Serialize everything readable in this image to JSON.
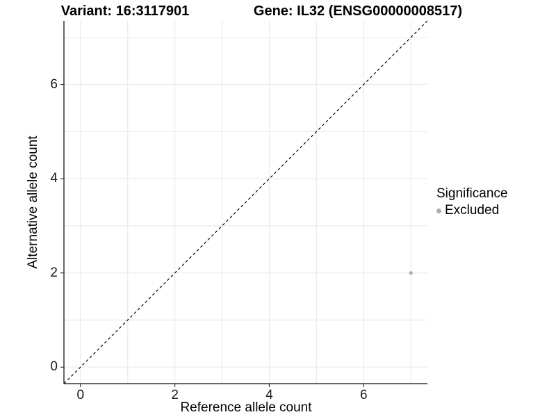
{
  "chart_data": {
    "type": "scatter",
    "title_left": "Variant: 16:3117901",
    "title_right": "Gene: IL32 (ENSG00000008517)",
    "xlabel": "Reference allele count",
    "ylabel": "Alternative allele count",
    "xlim": [
      -0.35,
      7.35
    ],
    "ylim": [
      -0.35,
      7.35
    ],
    "x_ticks": [
      0,
      2,
      4,
      6
    ],
    "y_ticks": [
      0,
      2,
      4,
      6
    ],
    "x_gridlines": [
      0,
      1,
      2,
      3,
      4,
      5,
      6,
      7
    ],
    "y_gridlines": [
      0,
      1,
      2,
      3,
      4,
      5,
      6,
      7
    ],
    "grid": true,
    "identity_line": {
      "style": "dashed",
      "color": "#000000"
    },
    "series": [
      {
        "name": "Excluded",
        "color": "#ababab",
        "marker_radius": 2.6,
        "points": [
          {
            "x": 7,
            "y": 2
          }
        ]
      }
    ],
    "legend": {
      "title": "Significance",
      "position": "right",
      "items": [
        {
          "label": "Excluded",
          "color": "#ababab"
        }
      ]
    },
    "colors": {
      "gridline": "#ebebeb",
      "axis_line": "#333333",
      "tick_mark": "#333333",
      "tick_text": "#1a1a1a",
      "background": "#ffffff"
    }
  }
}
